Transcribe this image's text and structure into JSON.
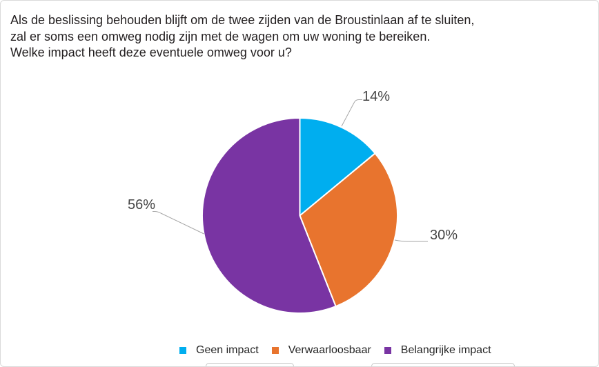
{
  "page": {
    "background": "#FFFFFF",
    "border_color": "#D9D9D9"
  },
  "header": {
    "lines": [
      "Als de beslissing behouden blijft om de twee zijden van de Broustinlaan af te sluiten,",
      "zal er soms een omweg nodig zijn met de wagen om uw woning te bereiken.",
      "Welke impact heeft deze eventuele omweg voor u?"
    ],
    "text_color": "#231F20"
  },
  "chart_data": {
    "type": "pie",
    "title": "Als de beslissing behouden blijft om de twee zijden van de Broustinlaan af te sluiten, zal er soms een omweg nodig zijn met de wagen om uw woning te bereiken. Welke impact heeft deze eventuele omweg voor u?",
    "unit": "%",
    "slices": [
      {
        "name": "Geen impact",
        "value": 14,
        "label": "14%",
        "color": "#00AEEF"
      },
      {
        "name": "Verwaarloosbaar",
        "value": 30,
        "label": "30%",
        "color": "#E8742E"
      },
      {
        "name": "Belangrijke impact",
        "value": 56,
        "label": "56%",
        "color": "#7934A3"
      }
    ],
    "start_angle": "12 o'clock, clockwise",
    "legend_position": "bottom",
    "label_color": "#444444",
    "leader_line_color": "#A6A6A6"
  }
}
